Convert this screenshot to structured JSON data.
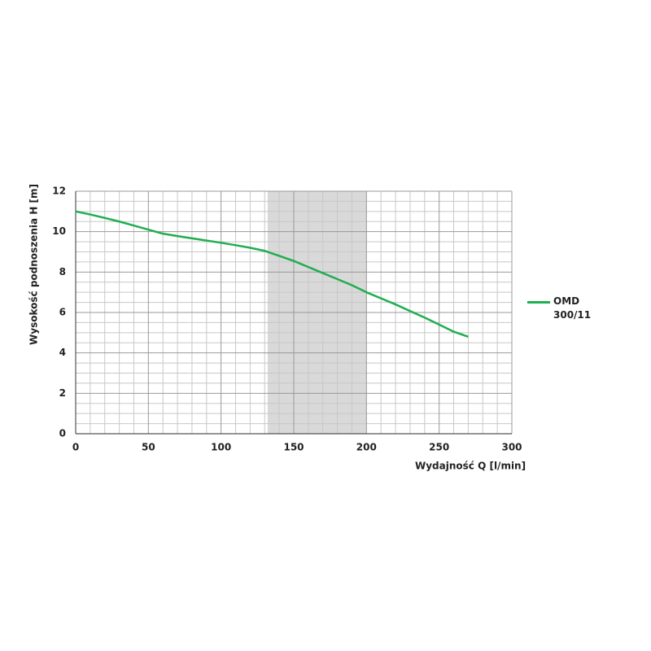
{
  "chart_data": {
    "type": "line",
    "x_label": "Wydajność Q [l/min]",
    "y_label": "Wysokość podnoszenia H [m]",
    "x": [
      0,
      10,
      20,
      30,
      40,
      50,
      60,
      70,
      80,
      90,
      100,
      110,
      120,
      130,
      140,
      150,
      160,
      170,
      180,
      190,
      200,
      210,
      220,
      230,
      240,
      250,
      260,
      270
    ],
    "series": [
      {
        "name": "OMD 300/11",
        "color": "#1fae50",
        "values": [
          11,
          10.85,
          10.68,
          10.5,
          10.3,
          10.1,
          9.9,
          9.78,
          9.67,
          9.56,
          9.45,
          9.33,
          9.2,
          9.05,
          8.8,
          8.55,
          8.25,
          7.95,
          7.65,
          7.35,
          7,
          6.7,
          6.4,
          6.07,
          5.75,
          5.4,
          5.05,
          4.8
        ]
      }
    ],
    "highlight_range": [
      132,
      200
    ],
    "highlight_color": "#d9d9d9",
    "xlim": [
      0,
      300
    ],
    "xticks": [
      0,
      50,
      100,
      150,
      200,
      250,
      300
    ],
    "ylim": [
      0,
      12
    ],
    "yticks": [
      0,
      2,
      4,
      6,
      8,
      10,
      12
    ],
    "grid": true,
    "legend": "right"
  }
}
